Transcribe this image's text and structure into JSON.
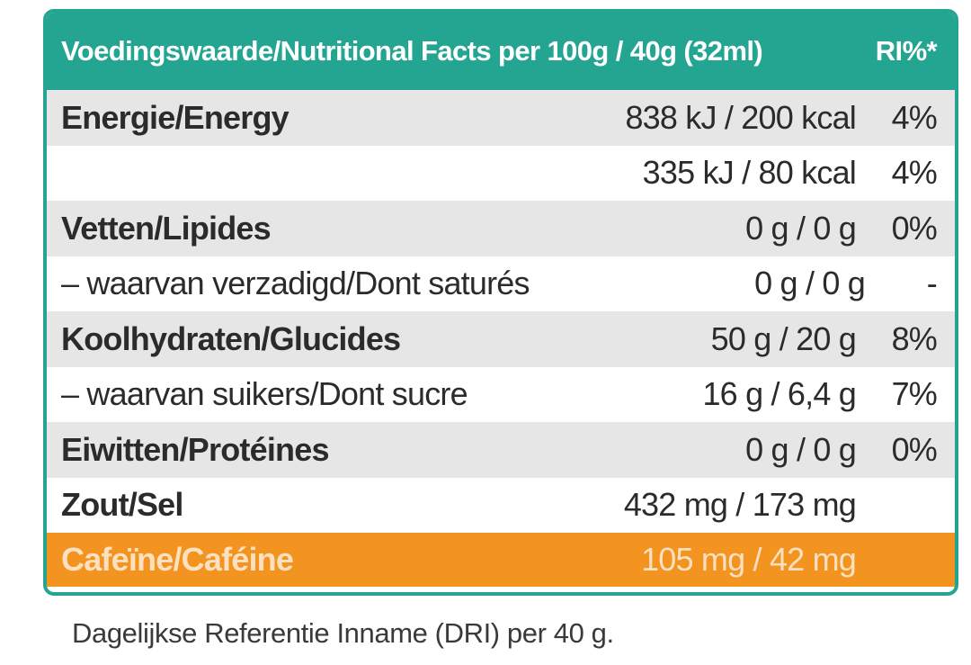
{
  "table": {
    "header": {
      "title": "Voedingswaarde/Nutritional Facts per 100g / 40g (32ml)",
      "ri": "RI%*"
    },
    "rows": [
      {
        "label": "Energie/Energy",
        "amount": "838 kJ / 200 kcal",
        "ri": "4%"
      },
      {
        "label": "",
        "amount": "335 kJ / 80 kcal",
        "ri": "4%"
      },
      {
        "label": "Vetten/Lipides",
        "amount": "0 g / 0 g",
        "ri": "0%"
      },
      {
        "label": "– waarvan verzadigd/Dont saturés",
        "amount": "0 g / 0 g",
        "ri": "-"
      },
      {
        "label": "Koolhydraten/Glucides",
        "amount": "50 g / 20 g",
        "ri": "8%"
      },
      {
        "label": "– waarvan suikers/Dont sucre",
        "amount": "16 g / 6,4 g",
        "ri": "7%"
      },
      {
        "label": "Eiwitten/Protéines",
        "amount": "0 g / 0 g",
        "ri": "0%"
      },
      {
        "label": "Zout/Sel",
        "amount": "432 mg / 173 mg",
        "ri": ""
      },
      {
        "label": "Cafeïne/Caféine",
        "amount": "105 mg / 42 mg",
        "ri": ""
      }
    ]
  },
  "footnote": "Dagelijkse Referentie Inname (DRI) per 40 g.",
  "colors": {
    "header_bg": "#24a592",
    "row_shaded": "#e6e6e6",
    "caffeine_bg": "#f39320"
  }
}
